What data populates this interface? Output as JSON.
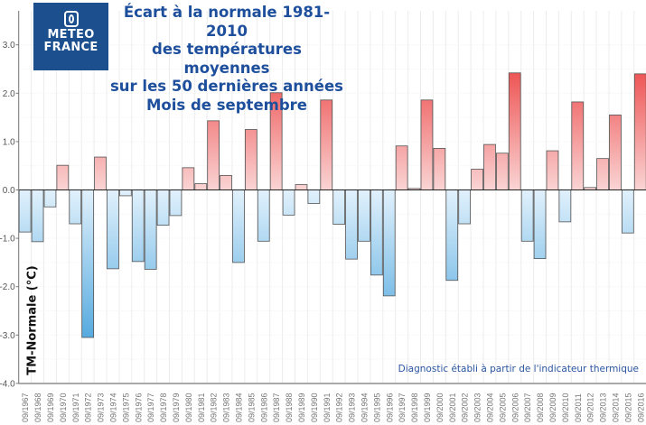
{
  "logo": {
    "line1": "METEO",
    "line2": "FRANCE"
  },
  "title_lines": [
    "Écart à la normale 1981-2010",
    "des températures moyennes",
    "sur les 50 dernières années",
    "Mois de septembre"
  ],
  "note": "Diagnostic établi à partir de l'indicateur thermique",
  "chart_data": {
    "type": "bar",
    "title": "Écart à la normale 1981-2010 des températures moyennes sur les 50 dernières années Mois de septembre",
    "ylabel": "TM-Normale (°C)",
    "xlabel": "",
    "ylim": [
      -4,
      3
    ],
    "yticks": [
      "3.0",
      "2.0",
      "1.0",
      "0.0",
      "-1.0",
      "-2.0",
      "-3.0",
      "-4.0"
    ],
    "grid": true,
    "colors": {
      "positive": "#ee5555",
      "positive_light": "#fad4d4",
      "negative": "#56aadf",
      "negative_light": "#e1f1fc"
    },
    "categories": [
      "09/1967",
      "09/1968",
      "09/1969",
      "09/1970",
      "09/1971",
      "09/1972",
      "09/1973",
      "09/1974",
      "09/1975",
      "09/1976",
      "09/1977",
      "09/1978",
      "09/1979",
      "09/1980",
      "09/1981",
      "09/1982",
      "09/1983",
      "09/1984",
      "09/1985",
      "09/1986",
      "09/1987",
      "09/1988",
      "09/1989",
      "09/1990",
      "09/1991",
      "09/1992",
      "09/1993",
      "09/1994",
      "09/1995",
      "09/1996",
      "09/1997",
      "09/1998",
      "09/1999",
      "09/2000",
      "09/2001",
      "09/2002",
      "09/2003",
      "09/2004",
      "09/2005",
      "09/2006",
      "09/2007",
      "09/2008",
      "09/2009",
      "09/2010",
      "09/2011",
      "09/2012",
      "09/2013",
      "09/2014",
      "09/2015",
      "09/2016"
    ],
    "values": [
      -0.87,
      -1.07,
      -0.35,
      0.51,
      -0.7,
      -3.05,
      0.68,
      -1.63,
      -0.12,
      -1.48,
      -1.64,
      -0.73,
      -0.53,
      0.46,
      0.13,
      1.43,
      0.3,
      -1.5,
      1.25,
      -1.06,
      2.01,
      -0.52,
      0.11,
      -0.28,
      1.86,
      -0.71,
      -1.43,
      -1.06,
      -1.76,
      -2.19,
      0.91,
      0.03,
      1.86,
      0.86,
      -1.87,
      -0.7,
      0.43,
      0.94,
      0.76,
      2.42,
      -1.06,
      -1.42,
      0.81,
      -0.66,
      1.82,
      0.05,
      0.65,
      1.55,
      -0.89,
      2.4
    ]
  }
}
